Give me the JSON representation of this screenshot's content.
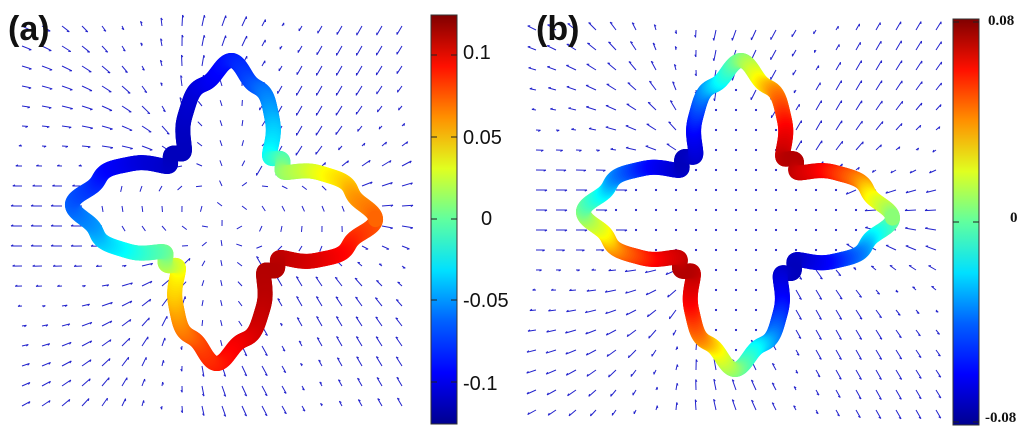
{
  "panels": {
    "a": {
      "label": "(a)"
    },
    "b": {
      "label": "(b)"
    }
  },
  "colorbar_a": {
    "ticks": [
      "0.1",
      "0.05",
      "0",
      "-0.05",
      "-0.1"
    ]
  },
  "colorbar_b": {
    "ticks": [
      "0.08",
      "0",
      "-0.08"
    ]
  },
  "colors": {
    "arrows": "#2222cc",
    "colormap": [
      "#00008f",
      "#0000ff",
      "#0080ff",
      "#00ffff",
      "#80ff80",
      "#ffff00",
      "#ff8000",
      "#ff0000",
      "#800000"
    ]
  },
  "icons": [
    "vector-field-arrow"
  ]
}
